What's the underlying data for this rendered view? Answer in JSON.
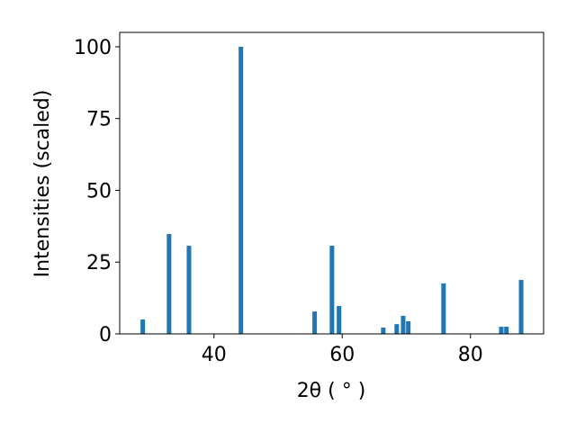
{
  "chart_data": {
    "type": "bar",
    "x_label": "2θ ( ° )",
    "y_label": "Intensities (scaled)",
    "x": [
      28.9,
      33.0,
      36.1,
      44.2,
      55.7,
      58.4,
      59.5,
      66.4,
      68.5,
      69.5,
      70.3,
      75.8,
      84.8,
      85.6,
      87.9
    ],
    "values": [
      5.0,
      34.8,
      30.7,
      100,
      7.8,
      30.7,
      9.7,
      2.2,
      3.4,
      6.3,
      4.4,
      17.6,
      2.5,
      2.5,
      18.8
    ],
    "color": "#1f77b4",
    "xlim": [
      25.3,
      91.4
    ],
    "xticks": [
      40,
      60,
      80
    ],
    "ylim": [
      0,
      105
    ],
    "yticks": [
      0,
      25,
      50,
      75,
      100
    ]
  }
}
